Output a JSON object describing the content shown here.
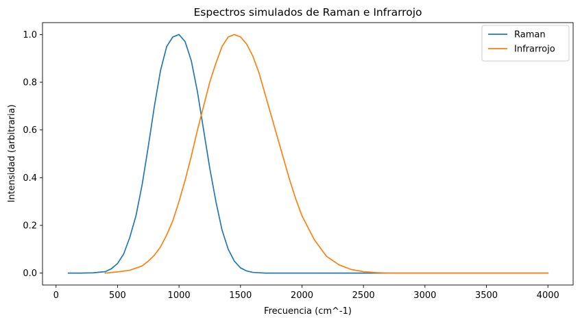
{
  "chart_data": {
    "type": "line",
    "title": "Espectros simulados de Raman e Infrarrojo",
    "xlabel": "Frecuencia (cm^-1)",
    "ylabel": "Intensidad (arbitraria)",
    "xlim": [
      -110,
      4205
    ],
    "ylim": [
      -0.05,
      1.05
    ],
    "xticks": [
      0,
      500,
      1000,
      1500,
      2000,
      2500,
      3000,
      3500,
      4000
    ],
    "xtick_labels": [
      "0",
      "500",
      "1000",
      "1500",
      "2000",
      "2500",
      "3000",
      "3500",
      "4000"
    ],
    "yticks": [
      0.0,
      0.2,
      0.4,
      0.6,
      0.8,
      1.0
    ],
    "ytick_labels": [
      "0.0",
      "0.2",
      "0.4",
      "0.6",
      "0.8",
      "1.0"
    ],
    "grid": false,
    "legend": "top-right",
    "series": [
      {
        "name": "Raman",
        "color": "#1f77b4",
        "x": [
          100,
          200,
          300,
          400,
          450,
          500,
          550,
          600,
          650,
          700,
          750,
          800,
          850,
          900,
          950,
          1000,
          1050,
          1100,
          1150,
          1200,
          1250,
          1300,
          1350,
          1400,
          1450,
          1500,
          1550,
          1600,
          1700,
          1800,
          2000,
          2500,
          3000,
          3500,
          4000
        ],
        "y": [
          0.0,
          0.0,
          0.001,
          0.006,
          0.018,
          0.04,
          0.08,
          0.15,
          0.24,
          0.37,
          0.53,
          0.7,
          0.85,
          0.95,
          0.99,
          1.0,
          0.97,
          0.89,
          0.76,
          0.6,
          0.44,
          0.3,
          0.18,
          0.1,
          0.05,
          0.022,
          0.009,
          0.003,
          0.0,
          0.0,
          0.0,
          0.0,
          0.0,
          0.0,
          0.0
        ]
      },
      {
        "name": "Infrarrojo",
        "color": "#ff7f0e",
        "x": [
          400,
          500,
          600,
          700,
          750,
          800,
          850,
          900,
          950,
          1000,
          1050,
          1100,
          1150,
          1200,
          1250,
          1300,
          1350,
          1400,
          1450,
          1500,
          1550,
          1600,
          1650,
          1700,
          1750,
          1800,
          1850,
          1900,
          1950,
          2000,
          2100,
          2200,
          2300,
          2400,
          2500,
          2600,
          2700,
          3000,
          3500,
          4000
        ],
        "y": [
          0.0,
          0.005,
          0.012,
          0.03,
          0.05,
          0.075,
          0.11,
          0.16,
          0.22,
          0.3,
          0.39,
          0.49,
          0.6,
          0.7,
          0.8,
          0.88,
          0.95,
          0.99,
          1.0,
          0.99,
          0.96,
          0.91,
          0.84,
          0.75,
          0.66,
          0.57,
          0.48,
          0.39,
          0.31,
          0.24,
          0.14,
          0.07,
          0.035,
          0.015,
          0.006,
          0.002,
          0.0,
          0.0,
          0.0,
          0.0
        ]
      }
    ]
  }
}
